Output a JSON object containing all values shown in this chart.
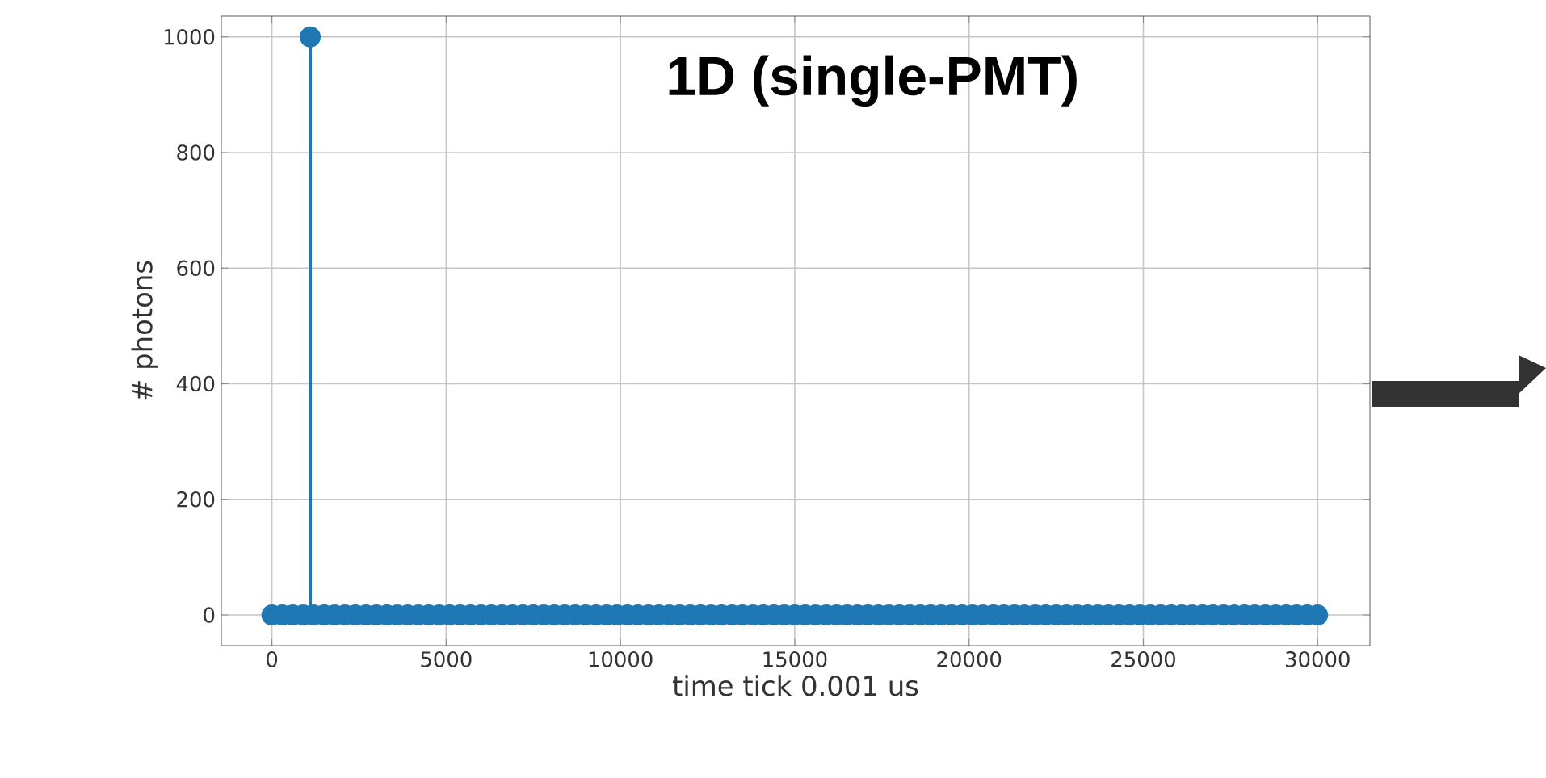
{
  "chart_data": {
    "type": "lollipop",
    "xlabel": "time tick 0.001 us",
    "ylabel": "# photons",
    "annotations": [
      "**1D (single-PMT)**"
    ],
    "x": [
      0,
      300,
      600,
      900,
      1100,
      1200,
      1500,
      1800,
      2100,
      2400,
      2700,
      3000,
      3300,
      3600,
      3900,
      4200,
      4500,
      4800,
      5100,
      5400,
      5700,
      6000,
      6300,
      6600,
      6900,
      7200,
      7500,
      7800,
      8100,
      8400,
      8700,
      9000,
      9300,
      9600,
      9900,
      10200,
      10500,
      10800,
      11100,
      11400,
      11700,
      12000,
      12300,
      12600,
      12900,
      13200,
      13500,
      13800,
      14100,
      14400,
      14700,
      15000,
      15300,
      15600,
      15900,
      16200,
      16500,
      16800,
      17100,
      17400,
      17700,
      18000,
      18300,
      18600,
      18900,
      19200,
      19500,
      19800,
      20100,
      20400,
      20700,
      21000,
      21300,
      21600,
      21900,
      22200,
      22500,
      22800,
      23100,
      23400,
      23700,
      24000,
      24300,
      24600,
      24900,
      25200,
      25500,
      25800,
      26100,
      26400,
      26700,
      27000,
      27300,
      27600,
      27900,
      28200,
      28500,
      28800,
      29100,
      29400,
      29700,
      30000
    ],
    "values": [
      0,
      0,
      0,
      0,
      1000,
      0,
      0,
      0,
      0,
      0,
      0,
      0,
      0,
      0,
      0,
      0,
      0,
      0,
      0,
      0,
      0,
      0,
      0,
      0,
      0,
      0,
      0,
      0,
      0,
      0,
      0,
      0,
      0,
      0,
      0,
      0,
      0,
      0,
      0,
      0,
      0,
      0,
      0,
      0,
      0,
      0,
      0,
      0,
      0,
      0,
      0,
      0,
      0,
      0,
      0,
      0,
      0,
      0,
      0,
      0,
      0,
      0,
      0,
      0,
      0,
      0,
      0,
      0,
      0,
      0,
      0,
      0,
      0,
      0,
      0,
      0,
      0,
      0,
      0,
      0,
      0,
      0,
      0,
      0,
      0,
      0,
      0,
      0,
      0,
      0,
      0,
      0,
      0,
      0,
      0,
      0,
      0,
      0,
      0,
      0,
      0,
      0
    ],
    "color": "#1f77b4",
    "marker": "circle",
    "grid": true,
    "xlim": [
      -1450,
      31500
    ],
    "ylim": [
      -53,
      1036
    ],
    "xticks": [
      0,
      5000,
      10000,
      15000,
      20000,
      25000,
      30000
    ],
    "yticks": [
      0,
      200,
      400,
      600,
      800,
      1000
    ]
  }
}
